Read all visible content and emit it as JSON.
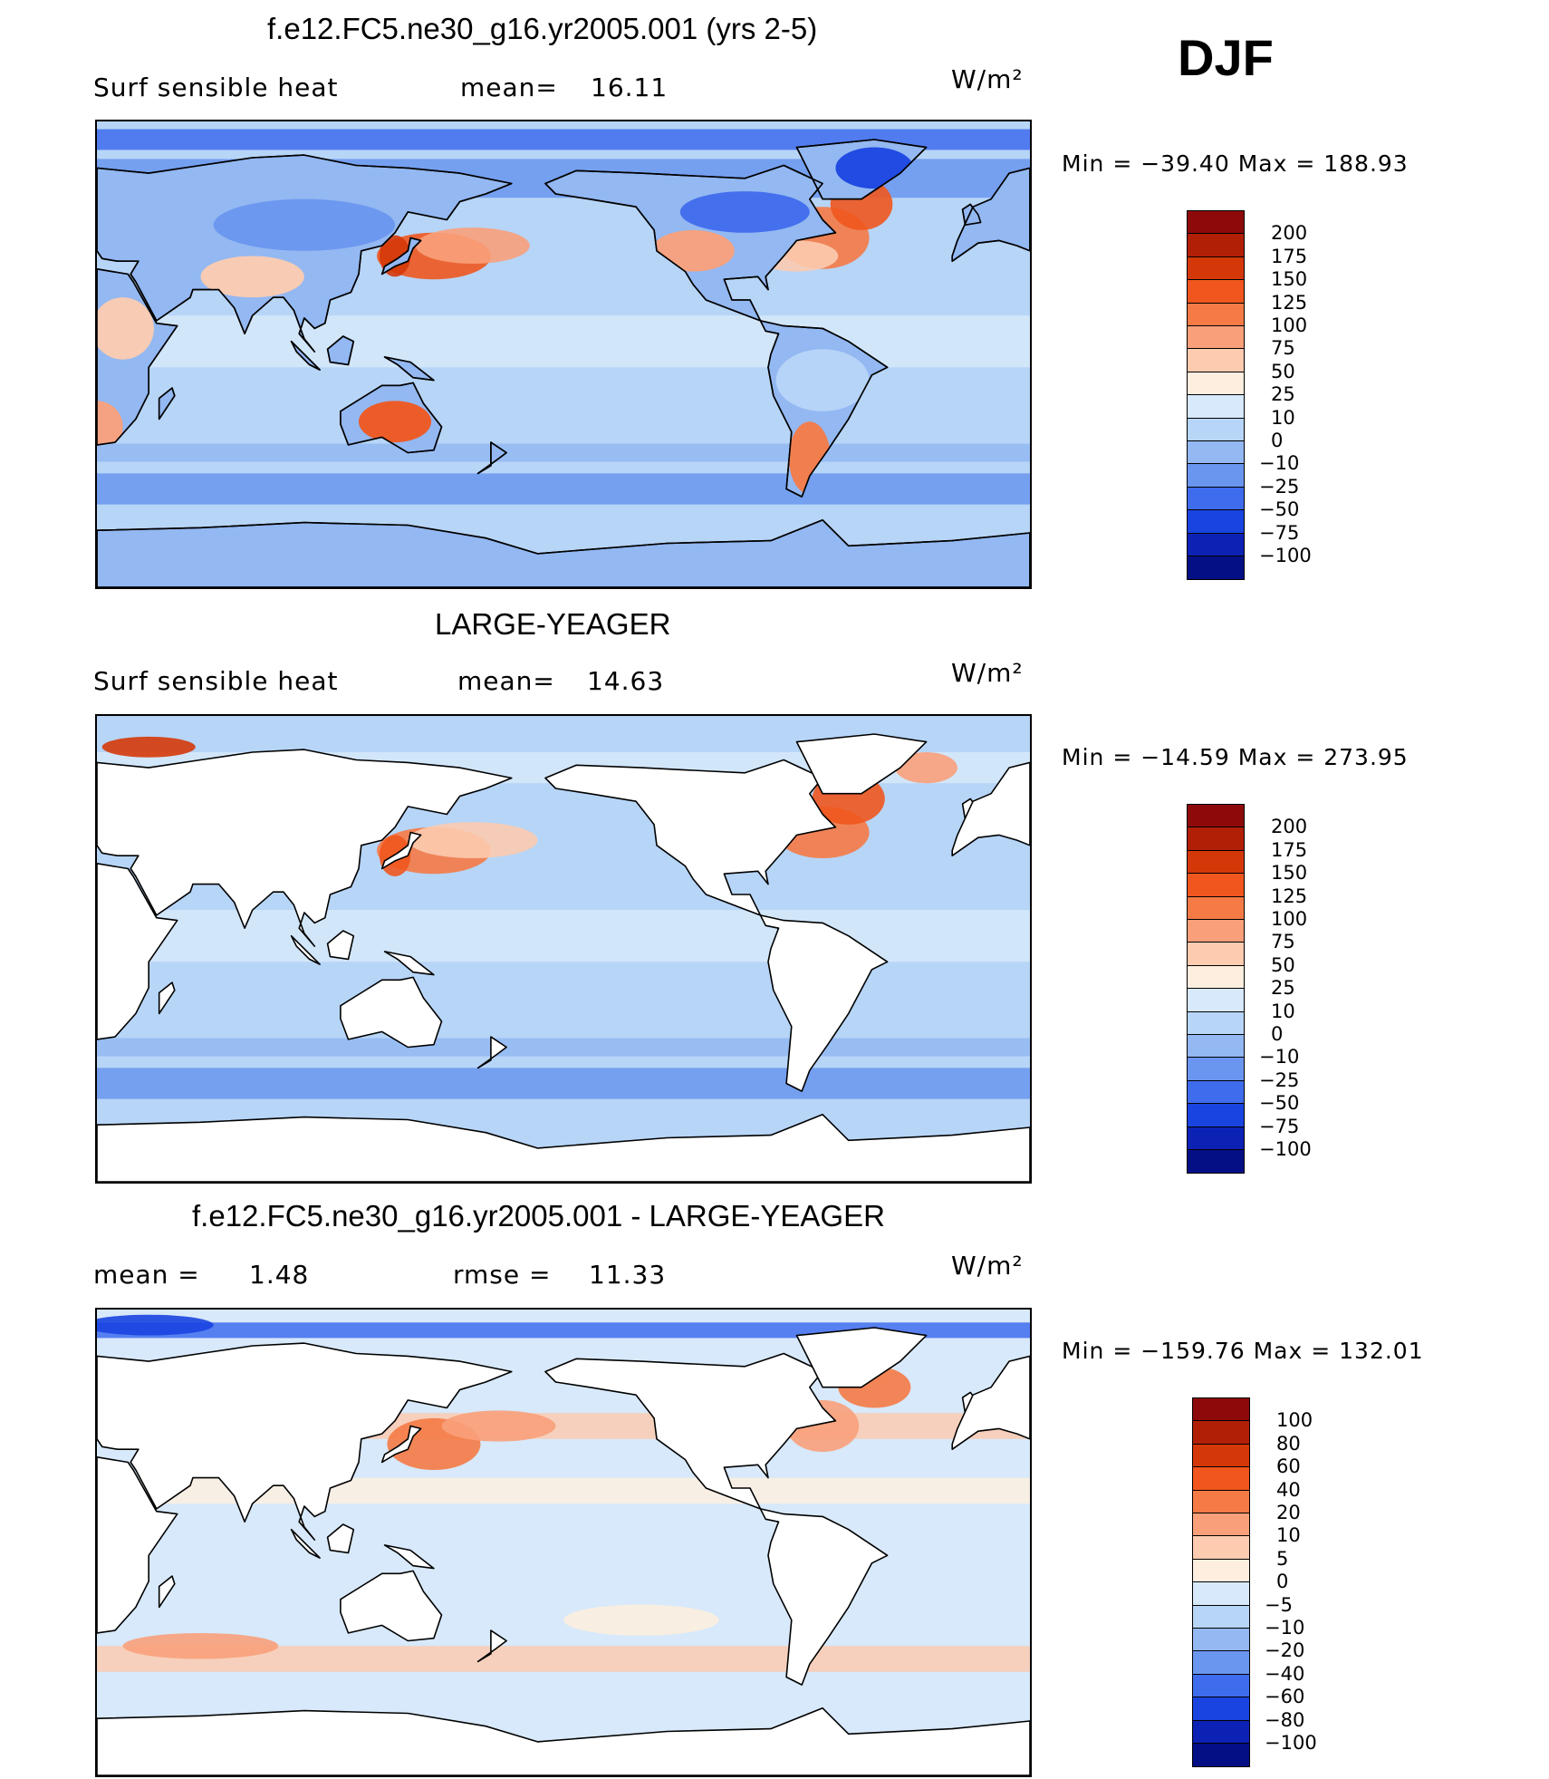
{
  "season": "DJF",
  "units": "W/m²",
  "panels": [
    {
      "id": "test",
      "title": "f.e12.FC5.ne30_g16.yr2005.001 (yrs 2-5)",
      "variable": "Surf sensible heat",
      "stat_label": "mean=",
      "stat_value": "16.11",
      "units": "W/m²",
      "min_label": "Min",
      "min_value": "−39.40",
      "max_label": "Max",
      "max_value": "188.93",
      "land_filled": true,
      "colorbar": {
        "labels": [
          "200",
          "175",
          "150",
          "125",
          "100",
          "75",
          "50",
          "25",
          "10",
          "0",
          "−10",
          "−25",
          "−50",
          "−75",
          "−100"
        ],
        "colors": [
          "#8e0a0a",
          "#b21f07",
          "#d53808",
          "#f0561e",
          "#f57a45",
          "#f9a07a",
          "#fccbb0",
          "#fdeedf",
          "#d7e9fa",
          "#b7d5f7",
          "#93b8f2",
          "#6a96ef",
          "#3f6ced",
          "#1a44e0",
          "#0c22b5",
          "#040f85"
        ]
      }
    },
    {
      "id": "control",
      "title": "LARGE-YEAGER",
      "variable": "Surf sensible heat",
      "stat_label": "mean=",
      "stat_value": "14.63",
      "units": "W/m²",
      "min_label": "Min",
      "min_value": "−14.59",
      "max_label": "Max",
      "max_value": "273.95",
      "land_filled": false,
      "colorbar": {
        "labels": [
          "200",
          "175",
          "150",
          "125",
          "100",
          "75",
          "50",
          "25",
          "10",
          "0",
          "−10",
          "−25",
          "−50",
          "−75",
          "−100"
        ],
        "colors": [
          "#8e0a0a",
          "#b21f07",
          "#d53808",
          "#f0561e",
          "#f57a45",
          "#f9a07a",
          "#fccbb0",
          "#fdeedf",
          "#d7e9fa",
          "#b7d5f7",
          "#93b8f2",
          "#6a96ef",
          "#3f6ced",
          "#1a44e0",
          "#0c22b5",
          "#040f85"
        ]
      }
    },
    {
      "id": "diff",
      "title": "f.e12.FC5.ne30_g16.yr2005.001 - LARGE-YEAGER",
      "mean_label": "mean =",
      "mean_value": "1.48",
      "rmse_label": "rmse =",
      "rmse_value": "11.33",
      "units": "W/m²",
      "min_label": "Min",
      "min_value": "−159.76",
      "max_label": "Max",
      "max_value": "132.01",
      "land_filled": false,
      "colorbar": {
        "labels": [
          "100",
          "80",
          "60",
          "40",
          "20",
          "10",
          "5",
          "0",
          "−5",
          "−10",
          "−20",
          "−40",
          "−60",
          "−80",
          "−100"
        ],
        "colors": [
          "#8e0a0a",
          "#b21f07",
          "#d53808",
          "#f0561e",
          "#f57a45",
          "#f9a07a",
          "#fccbb0",
          "#fdeedf",
          "#d7e9fa",
          "#b7d5f7",
          "#93b8f2",
          "#6a96ef",
          "#3f6ced",
          "#1a44e0",
          "#0c22b5",
          "#040f85"
        ]
      }
    }
  ]
}
